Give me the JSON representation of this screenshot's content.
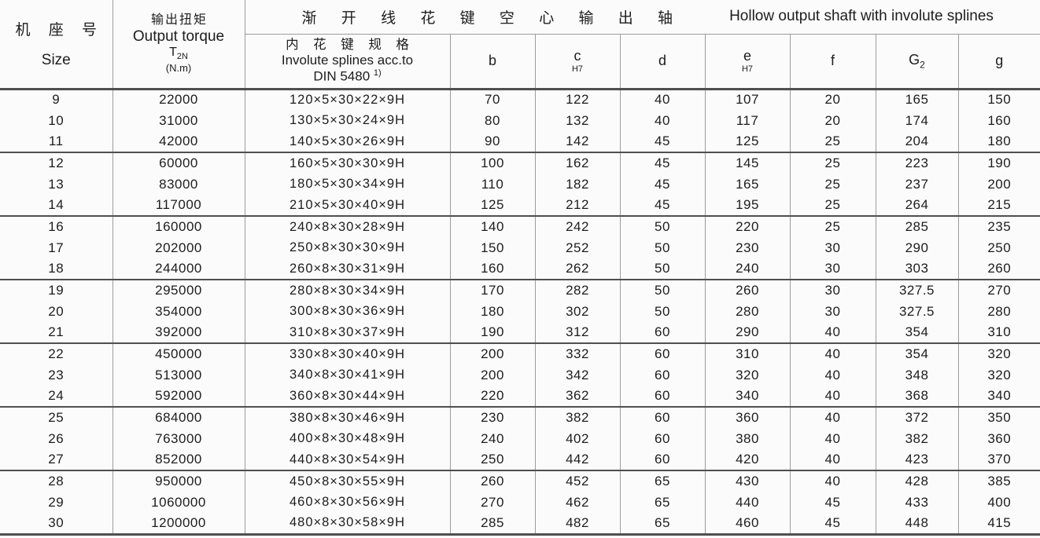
{
  "colors": {
    "text": "#1d1d1d",
    "grid_light": "#9c9c9c",
    "grid_dark": "#4f4f4f",
    "background": "#fbfbfb"
  },
  "header": {
    "size_cn": "机 座 号",
    "size_en": "Size",
    "torque_cn": "输出扭矩",
    "torque_en": "Output torque",
    "torque_symbol": "T",
    "torque_symbol_sub": "2N",
    "torque_unit": "(N.m)",
    "group_cn": "渐 开 线 花 键 空 心 输 出 轴",
    "group_en": "Hollow output shaft with involute splines",
    "spline_cn": "内 花 键 规 格",
    "spline_en": "Involute splines acc.to",
    "spline_std": "DIN 5480",
    "spline_std_sup": "1)",
    "col_b": "b",
    "col_c": "c",
    "col_c_sub": "H7",
    "col_d": "d",
    "col_e": "e",
    "col_e_sub": "H7",
    "col_f": "f",
    "col_g2_main": "G",
    "col_g2_sub": "2",
    "col_g": "g"
  },
  "rows": [
    {
      "size": "9",
      "torque": "22000",
      "spline": "120×5×30×22×9H",
      "b": "70",
      "c": "122",
      "d": "40",
      "e": "107",
      "f": "20",
      "g2": "165",
      "g": "150"
    },
    {
      "size": "10",
      "torque": "31000",
      "spline": "130×5×30×24×9H",
      "b": "80",
      "c": "132",
      "d": "40",
      "e": "117",
      "f": "20",
      "g2": "174",
      "g": "160"
    },
    {
      "size": "11",
      "torque": "42000",
      "spline": "140×5×30×26×9H",
      "b": "90",
      "c": "142",
      "d": "45",
      "e": "125",
      "f": "25",
      "g2": "204",
      "g": "180"
    },
    {
      "size": "12",
      "torque": "60000",
      "spline": "160×5×30×30×9H",
      "b": "100",
      "c": "162",
      "d": "45",
      "e": "145",
      "f": "25",
      "g2": "223",
      "g": "190"
    },
    {
      "size": "13",
      "torque": "83000",
      "spline": "180×5×30×34×9H",
      "b": "110",
      "c": "182",
      "d": "45",
      "e": "165",
      "f": "25",
      "g2": "237",
      "g": "200"
    },
    {
      "size": "14",
      "torque": "117000",
      "spline": "210×5×30×40×9H",
      "b": "125",
      "c": "212",
      "d": "45",
      "e": "195",
      "f": "25",
      "g2": "264",
      "g": "215"
    },
    {
      "size": "16",
      "torque": "160000",
      "spline": "240×8×30×28×9H",
      "b": "140",
      "c": "242",
      "d": "50",
      "e": "220",
      "f": "25",
      "g2": "285",
      "g": "235"
    },
    {
      "size": "17",
      "torque": "202000",
      "spline": "250×8×30×30×9H",
      "b": "150",
      "c": "252",
      "d": "50",
      "e": "230",
      "f": "30",
      "g2": "290",
      "g": "250"
    },
    {
      "size": "18",
      "torque": "244000",
      "spline": "260×8×30×31×9H",
      "b": "160",
      "c": "262",
      "d": "50",
      "e": "240",
      "f": "30",
      "g2": "303",
      "g": "260"
    },
    {
      "size": "19",
      "torque": "295000",
      "spline": "280×8×30×34×9H",
      "b": "170",
      "c": "282",
      "d": "50",
      "e": "260",
      "f": "30",
      "g2": "327.5",
      "g": "270"
    },
    {
      "size": "20",
      "torque": "354000",
      "spline": "300×8×30×36×9H",
      "b": "180",
      "c": "302",
      "d": "50",
      "e": "280",
      "f": "30",
      "g2": "327.5",
      "g": "280"
    },
    {
      "size": "21",
      "torque": "392000",
      "spline": "310×8×30×37×9H",
      "b": "190",
      "c": "312",
      "d": "60",
      "e": "290",
      "f": "40",
      "g2": "354",
      "g": "310"
    },
    {
      "size": "22",
      "torque": "450000",
      "spline": "330×8×30×40×9H",
      "b": "200",
      "c": "332",
      "d": "60",
      "e": "310",
      "f": "40",
      "g2": "354",
      "g": "320"
    },
    {
      "size": "23",
      "torque": "513000",
      "spline": "340×8×30×41×9H",
      "b": "200",
      "c": "342",
      "d": "60",
      "e": "320",
      "f": "40",
      "g2": "348",
      "g": "320"
    },
    {
      "size": "24",
      "torque": "592000",
      "spline": "360×8×30×44×9H",
      "b": "220",
      "c": "362",
      "d": "60",
      "e": "340",
      "f": "40",
      "g2": "368",
      "g": "340"
    },
    {
      "size": "25",
      "torque": "684000",
      "spline": "380×8×30×46×9H",
      "b": "230",
      "c": "382",
      "d": "60",
      "e": "360",
      "f": "40",
      "g2": "372",
      "g": "350"
    },
    {
      "size": "26",
      "torque": "763000",
      "spline": "400×8×30×48×9H",
      "b": "240",
      "c": "402",
      "d": "60",
      "e": "380",
      "f": "40",
      "g2": "382",
      "g": "360"
    },
    {
      "size": "27",
      "torque": "852000",
      "spline": "440×8×30×54×9H",
      "b": "250",
      "c": "442",
      "d": "60",
      "e": "420",
      "f": "40",
      "g2": "423",
      "g": "370"
    },
    {
      "size": "28",
      "torque": "950000",
      "spline": "450×8×30×55×9H",
      "b": "260",
      "c": "452",
      "d": "65",
      "e": "430",
      "f": "40",
      "g2": "428",
      "g": "385"
    },
    {
      "size": "29",
      "torque": "1060000",
      "spline": "460×8×30×56×9H",
      "b": "270",
      "c": "462",
      "d": "65",
      "e": "440",
      "f": "45",
      "g2": "433",
      "g": "400"
    },
    {
      "size": "30",
      "torque": "1200000",
      "spline": "480×8×30×58×9H",
      "b": "285",
      "c": "482",
      "d": "65",
      "e": "460",
      "f": "45",
      "g2": "448",
      "g": "415"
    }
  ]
}
